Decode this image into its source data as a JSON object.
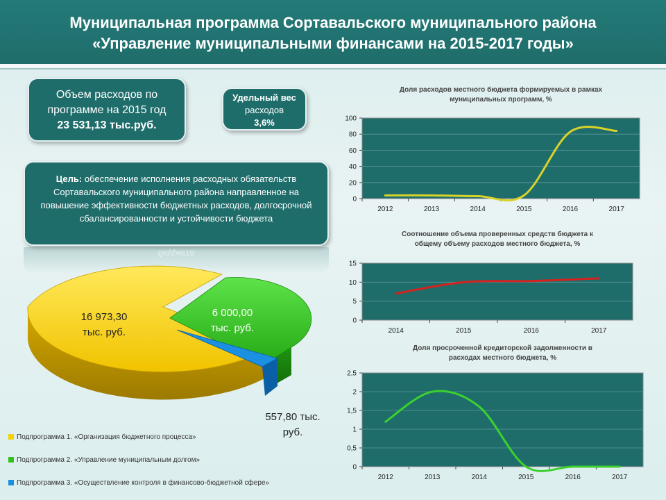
{
  "header": {
    "title_line1": "Муниципальная программа Сортавальского муниципального района",
    "title_line2": "«Управление муниципальными финансами на 2015-2017 годы»"
  },
  "summary": {
    "volume_line1": "Объем расходов по",
    "volume_line2": "программе на 2015 год",
    "volume_value": "23 531,13 тыс.руб.",
    "share_line1": "Удельный вес",
    "share_line2": "расходов",
    "share_value": "3,6%"
  },
  "goal": {
    "label": "Цель:",
    "text": "обеспечение исполнения расходных обязательств Сортавальского муниципального района направленное на повышение эффективности бюджетных расходов, долгосрочной сбалансированности и устойчивости бюджета",
    "reflection_word": "бюджета"
  },
  "colors": {
    "teal": "#1f6d6b",
    "yellow": "#f5d200",
    "green": "#2fc21a",
    "blue": "#1b8fe0",
    "line_yellow": "#d8d22a",
    "line_red": "#d6221e",
    "line_green": "#3bd12e"
  },
  "pie_labels": {
    "s1_line1": "16 973,30",
    "s1_line2": "тыс. руб.",
    "s2_line1": "6 000,00",
    "s2_line2": "тыс. руб.",
    "s3_line1": "557,80 тыс.",
    "s3_line2": "руб."
  },
  "legend": [
    {
      "label": "Подпрограмма 1. «Организация бюджетного процесса»"
    },
    {
      "label": "Подпрограмма 2. «Управление муниципальным долгом»"
    },
    {
      "label": "Подпрограмма 3. «Осуществление контроля в финансово-бюджетной сфере»"
    }
  ],
  "chart_data": [
    {
      "type": "pie",
      "title": "",
      "categories": [
        "Подпрограмма 1",
        "Подпрограмма 2",
        "Подпрограмма 3"
      ],
      "values": [
        16973.3,
        6000.0,
        557.8
      ],
      "unit": "тыс. руб."
    },
    {
      "type": "line",
      "title_line1": "Доля расходов местного бюджета формируемых в рамках",
      "title_line2": "муниципальных программ, %",
      "categories": [
        "2012",
        "2013",
        "2014",
        "2015",
        "2016",
        "2017"
      ],
      "values": [
        4,
        4,
        3,
        4,
        83,
        84
      ],
      "ylim": [
        0,
        100
      ],
      "yticks": [
        "0",
        "20",
        "40",
        "60",
        "80",
        "100"
      ],
      "ytick_values": [
        0,
        20,
        40,
        60,
        80,
        100
      ]
    },
    {
      "type": "line",
      "title_line1": "Соотношение объема проверенных средств бюджета к",
      "title_line2": "общему объему расходов местного бюджета, %",
      "categories": [
        "2014",
        "2015",
        "2016",
        "2017"
      ],
      "values": [
        7,
        10,
        10.3,
        11
      ],
      "ylim": [
        0,
        15
      ],
      "yticks": [
        "0",
        "5",
        "10",
        "15"
      ],
      "ytick_values": [
        0,
        5,
        10,
        15
      ]
    },
    {
      "type": "line",
      "title_line1": "Доля просроченной кредиторской задолженности в",
      "title_line2": "расходах местного бюджета, %",
      "categories": [
        "2012",
        "2013",
        "2014",
        "2015",
        "2016",
        "2017"
      ],
      "values": [
        1.2,
        2.0,
        1.6,
        0,
        0,
        0
      ],
      "ylim": [
        0,
        2.5
      ],
      "yticks": [
        "0",
        "0,5",
        "1",
        "1,5",
        "2",
        "2,5"
      ],
      "ytick_values": [
        0,
        0.5,
        1,
        1.5,
        2,
        2.5
      ]
    }
  ]
}
